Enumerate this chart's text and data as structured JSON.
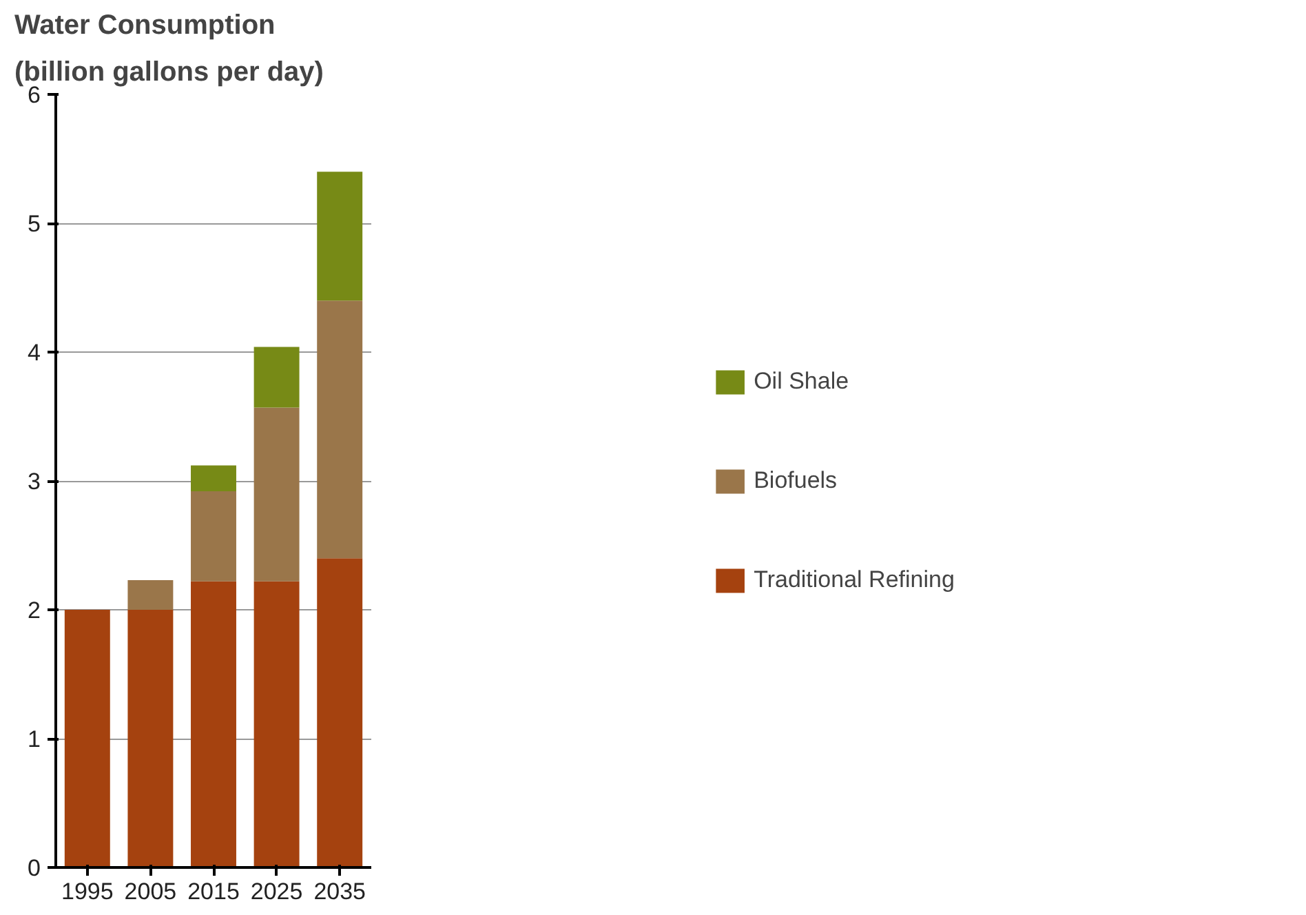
{
  "chart_data": {
    "type": "bar",
    "title": "Water Consumption",
    "subtitle": "(billion gallons per day)",
    "categories": [
      "1995",
      "2005",
      "2015",
      "2025",
      "2035"
    ],
    "stacked": true,
    "series": [
      {
        "name": "Traditional Refining",
        "color": "#a5420f",
        "values": [
          2.0,
          2.0,
          2.22,
          2.22,
          2.4
        ]
      },
      {
        "name": "Biofuels",
        "color": "#9a764a",
        "values": [
          0,
          0.23,
          0.7,
          1.35,
          2.0
        ]
      },
      {
        "name": "Oil Shale",
        "color": "#778a16",
        "values": [
          0,
          0,
          0.2,
          0.47,
          1.0
        ]
      }
    ],
    "ylim": [
      0,
      6
    ],
    "yticks": [
      0,
      1,
      2,
      3,
      4,
      5,
      6
    ],
    "grid": "y",
    "legend": "right"
  }
}
